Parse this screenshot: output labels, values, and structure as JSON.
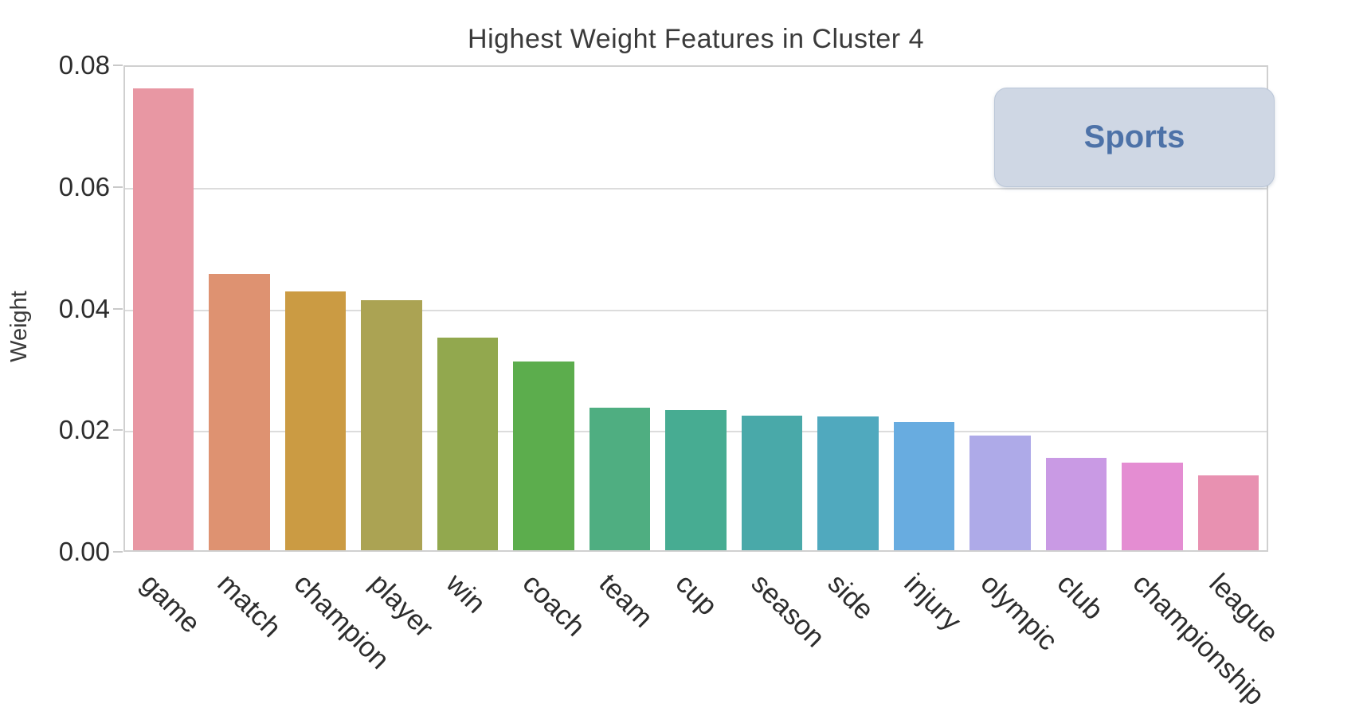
{
  "figure": {
    "title": "Highest Weight Features in Cluster 4",
    "y_axis_label": "Weight",
    "category_badge": "Sports"
  },
  "chart_data": {
    "type": "bar",
    "title": "Highest Weight Features in Cluster 4",
    "xlabel": "",
    "ylabel": "Weight",
    "ylim": [
      0,
      0.08
    ],
    "yticks": [
      0.0,
      0.02,
      0.04,
      0.06,
      0.08
    ],
    "ytick_labels": [
      "0.00",
      "0.02",
      "0.04",
      "0.06",
      "0.08"
    ],
    "grid": true,
    "legend_position": "none",
    "annotation": {
      "text": "Sports",
      "position": "top-right"
    },
    "x_tick_rotation_deg": 45,
    "categories": [
      "game",
      "match",
      "champion",
      "player",
      "win",
      "coach",
      "team",
      "cup",
      "season",
      "side",
      "injury",
      "olympic",
      "club",
      "championship",
      "league"
    ],
    "values": [
      0.0765,
      0.0458,
      0.0429,
      0.0414,
      0.0352,
      0.0313,
      0.0236,
      0.0232,
      0.0223,
      0.0222,
      0.0212,
      0.019,
      0.0153,
      0.0145,
      0.0124
    ],
    "bar_colors": [
      "#e897a3",
      "#de9271",
      "#cb9b43",
      "#aba353",
      "#92a84e",
      "#5cad4d",
      "#4fae81",
      "#47ac92",
      "#49a9a9",
      "#50a9be",
      "#68ace0",
      "#aeaae8",
      "#c99ae4",
      "#e48dd2",
      "#e891b1"
    ]
  },
  "colors": {
    "badge_background": "#cfd7e4",
    "badge_border": "#bac6d8",
    "badge_text": "#4d72a8",
    "gridline": "#dcdcdc",
    "spine": "#d0d0d0",
    "tick_text": "#2d2d2d",
    "title_text": "#3a3a3a"
  }
}
